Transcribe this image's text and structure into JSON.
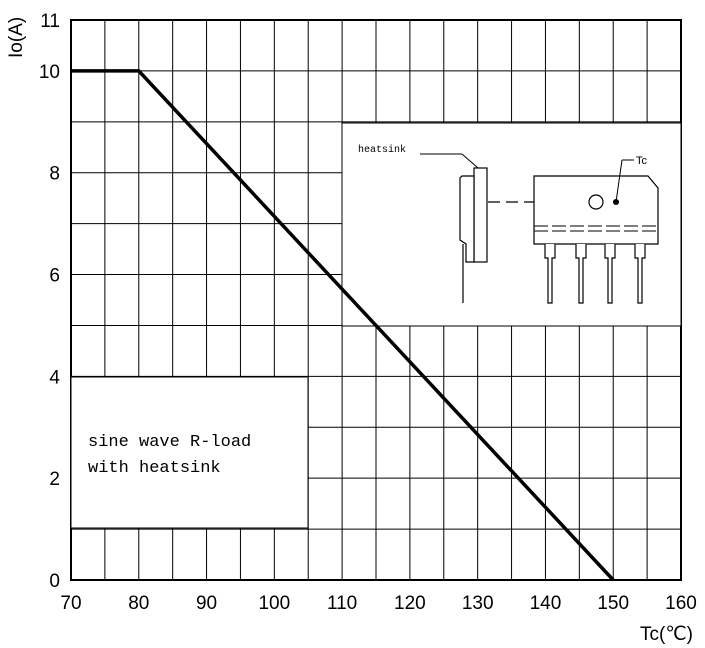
{
  "chart_data": {
    "type": "line",
    "xlabel": "Tc(℃)",
    "ylabel": "Io(A)",
    "xlim": [
      70,
      160
    ],
    "ylim": [
      0,
      11
    ],
    "x_ticks": [
      70,
      80,
      90,
      100,
      110,
      120,
      130,
      140,
      150,
      160
    ],
    "y_tick_labels": [
      "0",
      "2",
      "4",
      "6",
      "8",
      "10",
      "11"
    ],
    "grid": true,
    "series": [
      {
        "x": [
          70,
          80,
          150
        ],
        "y": [
          10,
          10,
          0
        ]
      }
    ],
    "annotation": {
      "line1": "sine wave R-load",
      "line2": "with heatsink"
    },
    "inset": {
      "heatsink_label": "heatsink",
      "tc_label": "Tc"
    }
  }
}
